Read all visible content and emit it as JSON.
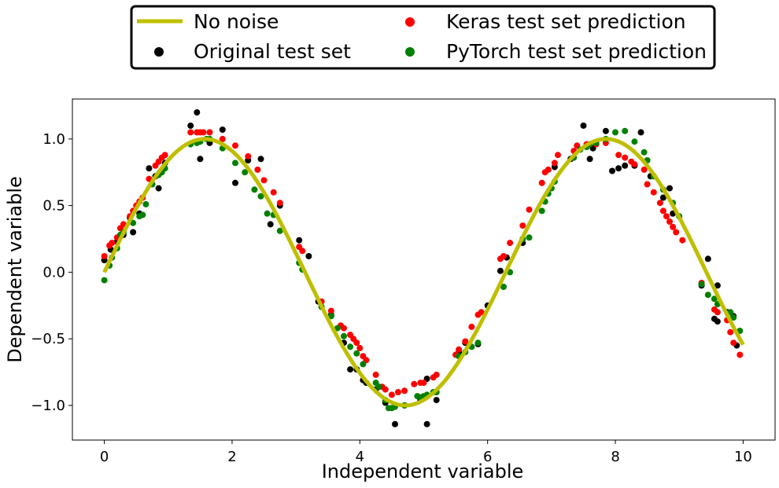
{
  "chart_data": {
    "type": "scatter",
    "title": "",
    "xlabel": "Independent variable",
    "ylabel": "Dependent variable",
    "xlim": [
      -0.5,
      10.5
    ],
    "ylim": [
      -1.26,
      1.3
    ],
    "xticks": [
      0,
      2,
      4,
      6,
      8,
      10
    ],
    "xtick_labels": [
      "0",
      "2",
      "4",
      "6",
      "8",
      "10"
    ],
    "yticks": [
      -1.0,
      -0.5,
      0.0,
      0.5,
      1.0
    ],
    "ytick_labels": [
      "−1.0",
      "−0.5",
      "0.0",
      "0.5",
      "1.0"
    ],
    "grid": false,
    "legend": {
      "placement": "top-center, outside plot",
      "columns": 2,
      "entries": [
        {
          "label": "No noise",
          "kind": "line",
          "color": "#bfbf00"
        },
        {
          "label": "Original test set",
          "kind": "marker",
          "color": "#000000"
        },
        {
          "label": "Keras test set prediction",
          "kind": "marker",
          "color": "#ff0000"
        },
        {
          "label": "PyTorch test set prediction",
          "kind": "marker",
          "color": "#008000"
        }
      ]
    },
    "line_series": {
      "name": "No noise",
      "color": "#bfbf00",
      "function": "sin(x)",
      "x_range": [
        0,
        10
      ]
    },
    "series": [
      {
        "name": "Original test set",
        "color": "#000000",
        "points": [
          [
            0.0,
            0.09
          ],
          [
            0.1,
            0.17
          ],
          [
            0.2,
            0.23
          ],
          [
            0.3,
            0.28
          ],
          [
            0.4,
            0.41
          ],
          [
            0.45,
            0.3
          ],
          [
            0.55,
            0.44
          ],
          [
            0.7,
            0.78
          ],
          [
            0.8,
            0.72
          ],
          [
            0.85,
            0.63
          ],
          [
            0.95,
            0.82
          ],
          [
            1.35,
            1.1
          ],
          [
            1.45,
            1.2
          ],
          [
            1.5,
            0.85
          ],
          [
            1.65,
            0.97
          ],
          [
            1.85,
            1.07
          ],
          [
            2.05,
            0.67
          ],
          [
            2.25,
            0.84
          ],
          [
            2.45,
            0.85
          ],
          [
            2.6,
            0.36
          ],
          [
            2.75,
            0.5
          ],
          [
            3.05,
            0.24
          ],
          [
            3.2,
            0.12
          ],
          [
            3.35,
            -0.22
          ],
          [
            3.55,
            -0.32
          ],
          [
            3.75,
            -0.53
          ],
          [
            3.85,
            -0.73
          ],
          [
            3.95,
            -0.73
          ],
          [
            4.05,
            -0.81
          ],
          [
            4.1,
            -0.83
          ],
          [
            4.25,
            -0.88
          ],
          [
            4.4,
            -0.98
          ],
          [
            4.55,
            -1.14
          ],
          [
            4.7,
            -1.0
          ],
          [
            4.95,
            -0.96
          ],
          [
            5.05,
            -0.8
          ],
          [
            5.05,
            -1.14
          ],
          [
            5.2,
            -0.96
          ],
          [
            5.55,
            -0.6
          ],
          [
            5.65,
            -0.53
          ],
          [
            5.85,
            -0.54
          ],
          [
            6.0,
            -0.25
          ],
          [
            6.2,
            0.01
          ],
          [
            6.3,
            0.11
          ],
          [
            6.55,
            0.22
          ],
          [
            7.05,
            0.79
          ],
          [
            7.3,
            0.85
          ],
          [
            7.5,
            1.1
          ],
          [
            7.6,
            0.85
          ],
          [
            7.65,
            0.93
          ],
          [
            7.85,
            1.06
          ],
          [
            7.95,
            0.76
          ],
          [
            8.05,
            0.78
          ],
          [
            8.15,
            0.8
          ],
          [
            8.3,
            0.8
          ],
          [
            8.4,
            1.05
          ],
          [
            8.55,
            0.72
          ],
          [
            8.75,
            0.56
          ],
          [
            8.85,
            0.63
          ],
          [
            8.9,
            0.44
          ],
          [
            9.35,
            -0.1
          ],
          [
            9.45,
            0.1
          ],
          [
            9.55,
            -0.35
          ],
          [
            9.6,
            -0.1
          ],
          [
            9.6,
            -0.37
          ],
          [
            9.75,
            -0.3
          ],
          [
            9.85,
            -0.33
          ],
          [
            9.9,
            -0.55
          ]
        ]
      },
      {
        "name": "Keras test set prediction",
        "color": "#ff0000",
        "points": [
          [
            0.0,
            0.12
          ],
          [
            0.08,
            0.2
          ],
          [
            0.12,
            0.22
          ],
          [
            0.2,
            0.26
          ],
          [
            0.25,
            0.33
          ],
          [
            0.3,
            0.36
          ],
          [
            0.4,
            0.42
          ],
          [
            0.45,
            0.46
          ],
          [
            0.5,
            0.5
          ],
          [
            0.55,
            0.53
          ],
          [
            0.6,
            0.56
          ],
          [
            0.7,
            0.7
          ],
          [
            0.8,
            0.8
          ],
          [
            0.85,
            0.83
          ],
          [
            0.9,
            0.86
          ],
          [
            0.95,
            0.88
          ],
          [
            1.35,
            1.05
          ],
          [
            1.45,
            1.05
          ],
          [
            1.5,
            1.05
          ],
          [
            1.55,
            1.05
          ],
          [
            1.65,
            1.05
          ],
          [
            1.85,
            1.0
          ],
          [
            2.05,
            0.95
          ],
          [
            2.25,
            0.87
          ],
          [
            2.4,
            0.77
          ],
          [
            2.5,
            0.69
          ],
          [
            2.65,
            0.6
          ],
          [
            2.75,
            0.52
          ],
          [
            3.05,
            0.19
          ],
          [
            3.1,
            0.16
          ],
          [
            3.4,
            -0.22
          ],
          [
            3.55,
            -0.29
          ],
          [
            3.7,
            -0.4
          ],
          [
            3.75,
            -0.42
          ],
          [
            3.85,
            -0.47
          ],
          [
            3.9,
            -0.5
          ],
          [
            3.95,
            -0.53
          ],
          [
            4.0,
            -0.57
          ],
          [
            4.05,
            -0.63
          ],
          [
            4.1,
            -0.66
          ],
          [
            4.25,
            -0.77
          ],
          [
            4.35,
            -0.86
          ],
          [
            4.4,
            -0.88
          ],
          [
            4.5,
            -0.92
          ],
          [
            4.6,
            -0.9
          ],
          [
            4.7,
            -0.89
          ],
          [
            4.85,
            -0.84
          ],
          [
            4.95,
            -0.83
          ],
          [
            5.0,
            -0.83
          ],
          [
            5.15,
            -0.79
          ],
          [
            5.2,
            -0.77
          ],
          [
            5.5,
            -0.62
          ],
          [
            5.55,
            -0.58
          ],
          [
            5.65,
            -0.52
          ],
          [
            5.75,
            -0.41
          ],
          [
            5.85,
            -0.32
          ],
          [
            5.9,
            -0.3
          ],
          [
            6.2,
            0.1
          ],
          [
            6.25,
            0.12
          ],
          [
            6.35,
            0.22
          ],
          [
            6.55,
            0.35
          ],
          [
            6.65,
            0.47
          ],
          [
            6.85,
            0.67
          ],
          [
            6.9,
            0.75
          ],
          [
            6.95,
            0.77
          ],
          [
            7.05,
            0.82
          ],
          [
            7.1,
            0.88
          ],
          [
            7.35,
            0.91
          ],
          [
            7.4,
            0.95
          ],
          [
            7.55,
            0.96
          ],
          [
            7.6,
            0.96
          ],
          [
            7.7,
            0.96
          ],
          [
            7.85,
            0.97
          ],
          [
            8.05,
            0.88
          ],
          [
            8.15,
            0.86
          ],
          [
            8.25,
            0.83
          ],
          [
            8.3,
            0.81
          ],
          [
            8.45,
            0.77
          ],
          [
            8.5,
            0.66
          ],
          [
            8.6,
            0.6
          ],
          [
            8.7,
            0.52
          ],
          [
            8.75,
            0.46
          ],
          [
            8.8,
            0.42
          ],
          [
            8.85,
            0.38
          ],
          [
            8.9,
            0.34
          ],
          [
            8.95,
            0.3
          ],
          [
            9.05,
            0.24
          ],
          [
            9.35,
            -0.08
          ],
          [
            9.55,
            -0.28
          ],
          [
            9.6,
            -0.3
          ],
          [
            9.75,
            -0.36
          ],
          [
            9.8,
            -0.45
          ],
          [
            9.85,
            -0.53
          ],
          [
            9.95,
            -0.62
          ]
        ]
      },
      {
        "name": "PyTorch test set prediction",
        "color": "#008000",
        "points": [
          [
            0.0,
            -0.06
          ],
          [
            0.08,
            0.05
          ],
          [
            0.12,
            0.11
          ],
          [
            0.2,
            0.18
          ],
          [
            0.25,
            0.28
          ],
          [
            0.3,
            0.3
          ],
          [
            0.45,
            0.37
          ],
          [
            0.55,
            0.42
          ],
          [
            0.6,
            0.43
          ],
          [
            0.65,
            0.51
          ],
          [
            0.75,
            0.66
          ],
          [
            0.85,
            0.73
          ],
          [
            0.9,
            0.75
          ],
          [
            0.95,
            0.78
          ],
          [
            1.35,
            0.96
          ],
          [
            1.45,
            0.97
          ],
          [
            1.5,
            0.98
          ],
          [
            1.6,
            1.0
          ],
          [
            1.65,
            1.0
          ],
          [
            1.85,
            0.93
          ],
          [
            2.05,
            0.82
          ],
          [
            2.2,
            0.75
          ],
          [
            2.35,
            0.62
          ],
          [
            2.45,
            0.57
          ],
          [
            2.55,
            0.44
          ],
          [
            2.65,
            0.43
          ],
          [
            2.75,
            0.31
          ],
          [
            3.05,
            0.07
          ],
          [
            3.1,
            0.02
          ],
          [
            3.4,
            -0.26
          ],
          [
            3.55,
            -0.33
          ],
          [
            3.65,
            -0.42
          ],
          [
            3.75,
            -0.48
          ],
          [
            3.85,
            -0.56
          ],
          [
            3.95,
            -0.61
          ],
          [
            4.05,
            -0.69
          ],
          [
            4.25,
            -0.83
          ],
          [
            4.3,
            -0.86
          ],
          [
            4.4,
            -0.96
          ],
          [
            4.45,
            -1.02
          ],
          [
            4.5,
            -1.02
          ],
          [
            4.55,
            -1.01
          ],
          [
            4.7,
            -1.0
          ],
          [
            4.9,
            -0.93
          ],
          [
            4.95,
            -0.94
          ],
          [
            5.0,
            -0.93
          ],
          [
            5.05,
            -0.92
          ],
          [
            5.15,
            -0.9
          ],
          [
            5.2,
            -0.9
          ],
          [
            5.55,
            -0.63
          ],
          [
            5.65,
            -0.6
          ],
          [
            5.75,
            -0.56
          ],
          [
            5.85,
            -0.53
          ],
          [
            6.25,
            -0.11
          ],
          [
            6.35,
            0.0
          ],
          [
            6.55,
            0.25
          ],
          [
            6.65,
            0.26
          ],
          [
            6.85,
            0.46
          ],
          [
            6.9,
            0.53
          ],
          [
            6.95,
            0.59
          ],
          [
            7.0,
            0.63
          ],
          [
            7.05,
            0.68
          ],
          [
            7.35,
            0.86
          ],
          [
            7.45,
            0.92
          ],
          [
            7.55,
            0.94
          ],
          [
            7.6,
            0.96
          ],
          [
            7.7,
            0.97
          ],
          [
            7.85,
            1.0
          ],
          [
            8.0,
            1.05
          ],
          [
            8.15,
            1.06
          ],
          [
            8.3,
            0.98
          ],
          [
            8.45,
            0.9
          ],
          [
            8.5,
            0.84
          ],
          [
            8.6,
            0.72
          ],
          [
            8.75,
            0.62
          ],
          [
            8.9,
            0.52
          ],
          [
            9.0,
            0.42
          ],
          [
            9.35,
            -0.09
          ],
          [
            9.45,
            -0.17
          ],
          [
            9.55,
            -0.2
          ],
          [
            9.6,
            -0.24
          ],
          [
            9.8,
            -0.3
          ],
          [
            9.85,
            -0.34
          ],
          [
            9.95,
            -0.44
          ]
        ]
      }
    ]
  }
}
